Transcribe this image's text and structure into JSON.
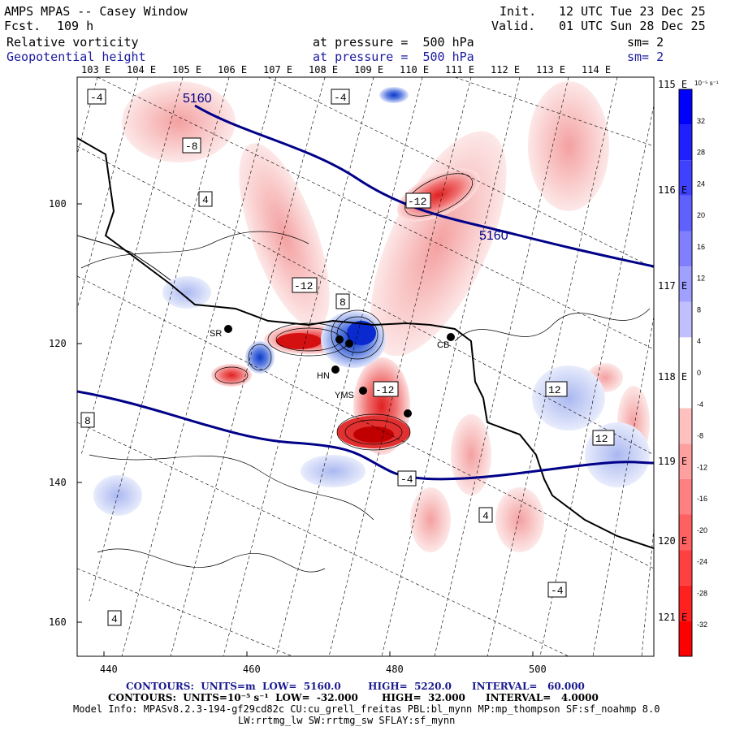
{
  "header": {
    "model": "AMPS MPAS -- Casey Window",
    "fcst_label": "Fcst.",
    "fcst_value": "109 h",
    "init_label": "Init.",
    "init_value": "12 UTC Tue 23 Dec 25",
    "valid_label": "Valid.",
    "valid_value": "01 UTC Sun 28 Dec 25",
    "field1": "Relative vorticity",
    "field1_level": "at pressure =  500 hPa",
    "field1_sm": "sm= 2",
    "field2": "Geopotential height",
    "field2_level": "at pressure =  500 hPa",
    "field2_sm": "sm= 2"
  },
  "axes": {
    "top_lon": [
      "103 E",
      "104 E",
      "105 E",
      "106 E",
      "107 E",
      "108 E",
      "109 E",
      "110 E",
      "111 E",
      "112 E",
      "113 E",
      "114 E"
    ],
    "right_lon": [
      "115 E",
      "116 E",
      "117 E",
      "118 E",
      "119 E",
      "120 E",
      "121 E"
    ],
    "x_ticks": [
      "440",
      "460",
      "480",
      "500"
    ],
    "y_ticks": [
      "100",
      "120",
      "140",
      "160"
    ]
  },
  "colorbar": {
    "unit": "10⁻⁵ s⁻¹",
    "labels": [
      "32",
      "28",
      "24",
      "20",
      "16",
      "12",
      "8",
      "4",
      "0",
      "-4",
      "-8",
      "-12",
      "-16",
      "-20",
      "-24",
      "-28",
      "-32"
    ]
  },
  "stations": [
    {
      "name": "SR"
    },
    {
      "name": "HN"
    },
    {
      "name": "YMS"
    },
    {
      "name": "CB"
    }
  ],
  "map_labels": {
    "height_contours": [
      "5160",
      "5160"
    ],
    "vorticity_boxes": [
      "-4",
      "4",
      "-8",
      "-12",
      "8",
      "12",
      "-4",
      "4"
    ]
  },
  "footer": {
    "line1": "CONTOURS:  UNITS=m  LOW=  5160.0        HIGH=  5220.0      INTERVAL=   60.000",
    "line2": "CONTOURS:  UNITS=10⁻⁵ s⁻¹  LOW=  -32.000       HIGH=  32.000      INTERVAL=   4.0000",
    "line3": "Model Info: MPASv8.2.3-194-gf29cd82c CU:cu_grell_freitas PBL:bl_mynn MP:mp_thompson SF:sf_noahmp 8.0",
    "line4": "LW:rrtmg_lw SW:rrtmg_sw SFLAY:sf_mynn"
  },
  "colors": {
    "blue_line": "#000088",
    "pos_vort": "#0000ff",
    "neg_vort": "#ff0000"
  }
}
